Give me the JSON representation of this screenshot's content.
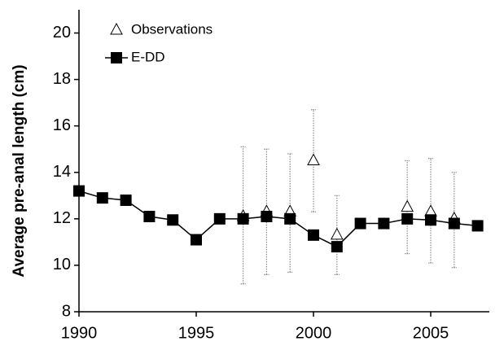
{
  "chart_data": {
    "type": "line",
    "ylabel": "Average pre-anal length (cm)",
    "xlim": [
      1990,
      2007.5
    ],
    "xticks": [
      1990,
      1995,
      2000,
      2005
    ],
    "ylim": [
      8,
      21
    ],
    "yticks": [
      8,
      10,
      12,
      14,
      16,
      18,
      20
    ],
    "series": [
      {
        "name": "Observations",
        "color": "#000000",
        "marker": "triangle",
        "line": false,
        "x": [
          1997,
          1998,
          1999,
          2000,
          2001,
          2004,
          2005,
          2006
        ],
        "values": [
          12.1,
          12.3,
          12.3,
          14.5,
          11.3,
          12.5,
          12.3,
          12.0
        ],
        "lower": [
          9.2,
          9.6,
          9.7,
          12.3,
          9.6,
          10.5,
          10.1,
          9.9
        ],
        "upper": [
          15.1,
          15.0,
          14.8,
          16.7,
          13.0,
          14.5,
          14.6,
          14.0
        ]
      },
      {
        "name": "E-DD",
        "color": "#000000",
        "marker": "square",
        "line": true,
        "x": [
          1990,
          1991,
          1992,
          1993,
          1994,
          1995,
          1996,
          1997,
          1998,
          1999,
          2000,
          2001,
          2002,
          2003,
          2004,
          2005,
          2006,
          2007
        ],
        "values": [
          13.2,
          12.9,
          12.8,
          12.1,
          11.95,
          11.1,
          12.0,
          12.0,
          12.1,
          12.0,
          11.3,
          10.8,
          11.8,
          11.8,
          12.0,
          11.95,
          11.8,
          11.7
        ]
      }
    ]
  }
}
